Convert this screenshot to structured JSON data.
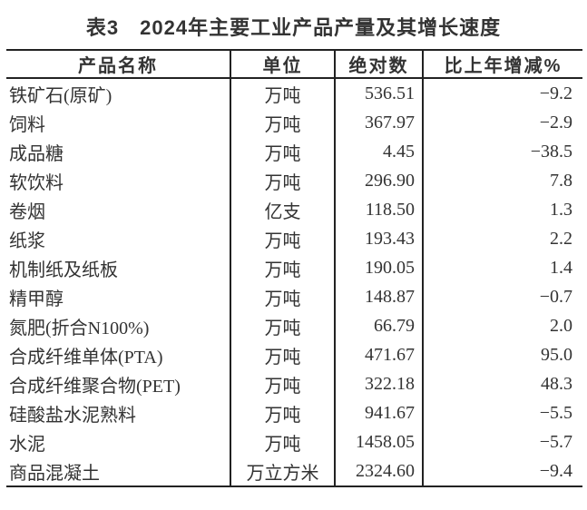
{
  "title": "表3　2024年主要工业产品产量及其增长速度",
  "table": {
    "headers": [
      "产品名称",
      "单位",
      "绝对数",
      "比上年增减%"
    ],
    "rows": [
      [
        "铁矿石(原矿)",
        "万吨",
        "536.51",
        "−9.2"
      ],
      [
        "饲料",
        "万吨",
        "367.97",
        "−2.9"
      ],
      [
        "成品糖",
        "万吨",
        "4.45",
        "−38.5"
      ],
      [
        "软饮料",
        "万吨",
        "296.90",
        "7.8"
      ],
      [
        "卷烟",
        "亿支",
        "118.50",
        "1.3"
      ],
      [
        "纸浆",
        "万吨",
        "193.43",
        "2.2"
      ],
      [
        "机制纸及纸板",
        "万吨",
        "190.05",
        "1.4"
      ],
      [
        "精甲醇",
        "万吨",
        "148.87",
        "−0.7"
      ],
      [
        "氮肥(折合N100%)",
        "万吨",
        "66.79",
        "2.0"
      ],
      [
        "合成纤维单体(PTA)",
        "万吨",
        "471.67",
        "95.0"
      ],
      [
        "合成纤维聚合物(PET)",
        "万吨",
        "322.18",
        "48.3"
      ],
      [
        "硅酸盐水泥熟料",
        "万吨",
        "941.67",
        "−5.5"
      ],
      [
        "水泥",
        "万吨",
        "1458.05",
        "−5.7"
      ],
      [
        "商品混凝土",
        "万立方米",
        "2324.60",
        "−9.4"
      ]
    ]
  },
  "colors": {
    "text": "#333333",
    "border": "#222222",
    "background": "#ffffff"
  }
}
